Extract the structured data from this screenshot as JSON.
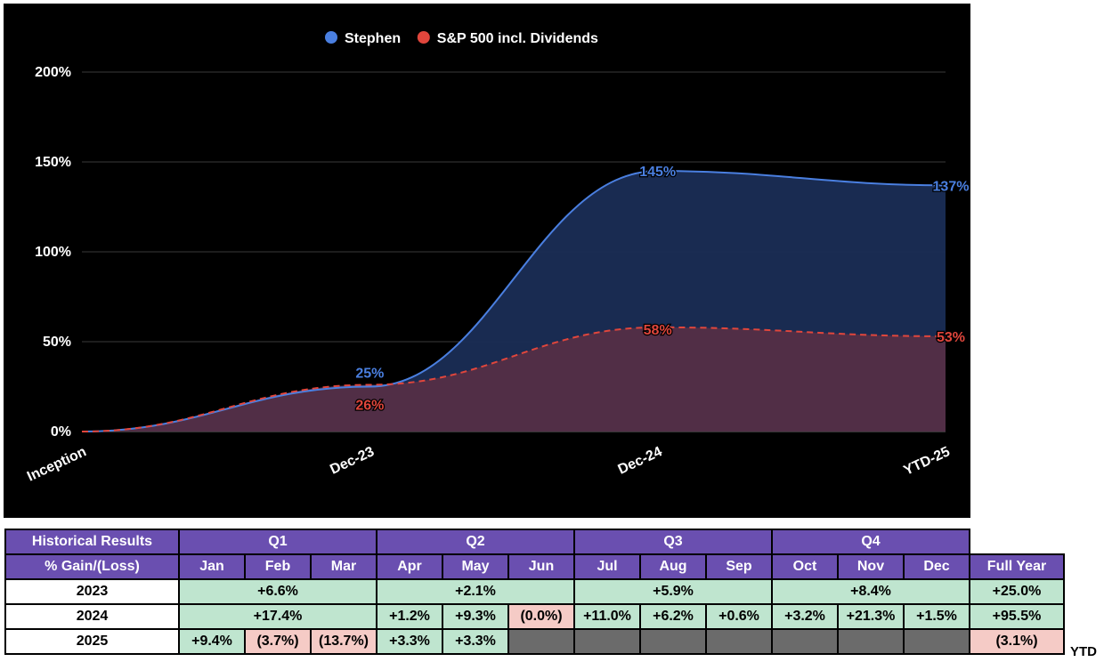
{
  "chart_data": {
    "type": "area",
    "x": [
      "Inception",
      "Dec-23",
      "Dec-24",
      "YTD-25"
    ],
    "series": [
      {
        "name": "Stephen",
        "values": [
          0,
          25,
          145,
          137
        ],
        "color": "#4a7fe0",
        "labels": [
          "",
          "25%",
          "145%",
          "137%"
        ]
      },
      {
        "name": "S&P 500 incl. Dividends",
        "values": [
          0,
          26,
          58,
          53
        ],
        "color": "#e0463c",
        "labels": [
          "",
          "26%",
          "58%",
          "53%"
        ]
      }
    ],
    "ylim": [
      0,
      200
    ],
    "yticks": [
      "0%",
      "50%",
      "100%",
      "150%",
      "200%"
    ],
    "legend": "top-center",
    "grid": true,
    "title": "",
    "xlabel": "",
    "ylabel": ""
  },
  "table": {
    "header_label": "Historical Results",
    "gain_label": "% Gain/(Loss)",
    "quarters": [
      "Q1",
      "Q2",
      "Q3",
      "Q4"
    ],
    "months": [
      "Jan",
      "Feb",
      "Mar",
      "Apr",
      "May",
      "Jun",
      "Jul",
      "Aug",
      "Sep",
      "Oct",
      "Nov",
      "Dec"
    ],
    "full_year_label": "Full Year",
    "rows": [
      {
        "year": "2023",
        "q1": "+6.6%",
        "q2": "+2.1%",
        "q3": "+5.9%",
        "q4": "+8.4%",
        "full_year": "+25.0%"
      },
      {
        "year": "2024",
        "q1": "+17.4%",
        "apr": "+1.2%",
        "may": "+9.3%",
        "jun": "(0.0%)",
        "jul": "+11.0%",
        "aug": "+6.2%",
        "sep": "+0.6%",
        "oct": "+3.2%",
        "nov": "+21.3%",
        "dec": "+1.5%",
        "full_year": "+95.5%"
      },
      {
        "year": "2025",
        "jan": "+9.4%",
        "feb": "(3.7%)",
        "mar": "(13.7%)",
        "apr": "+3.3%",
        "may": "+3.3%",
        "full_year": "(3.1%)"
      }
    ],
    "ytd_label": "YTD"
  }
}
